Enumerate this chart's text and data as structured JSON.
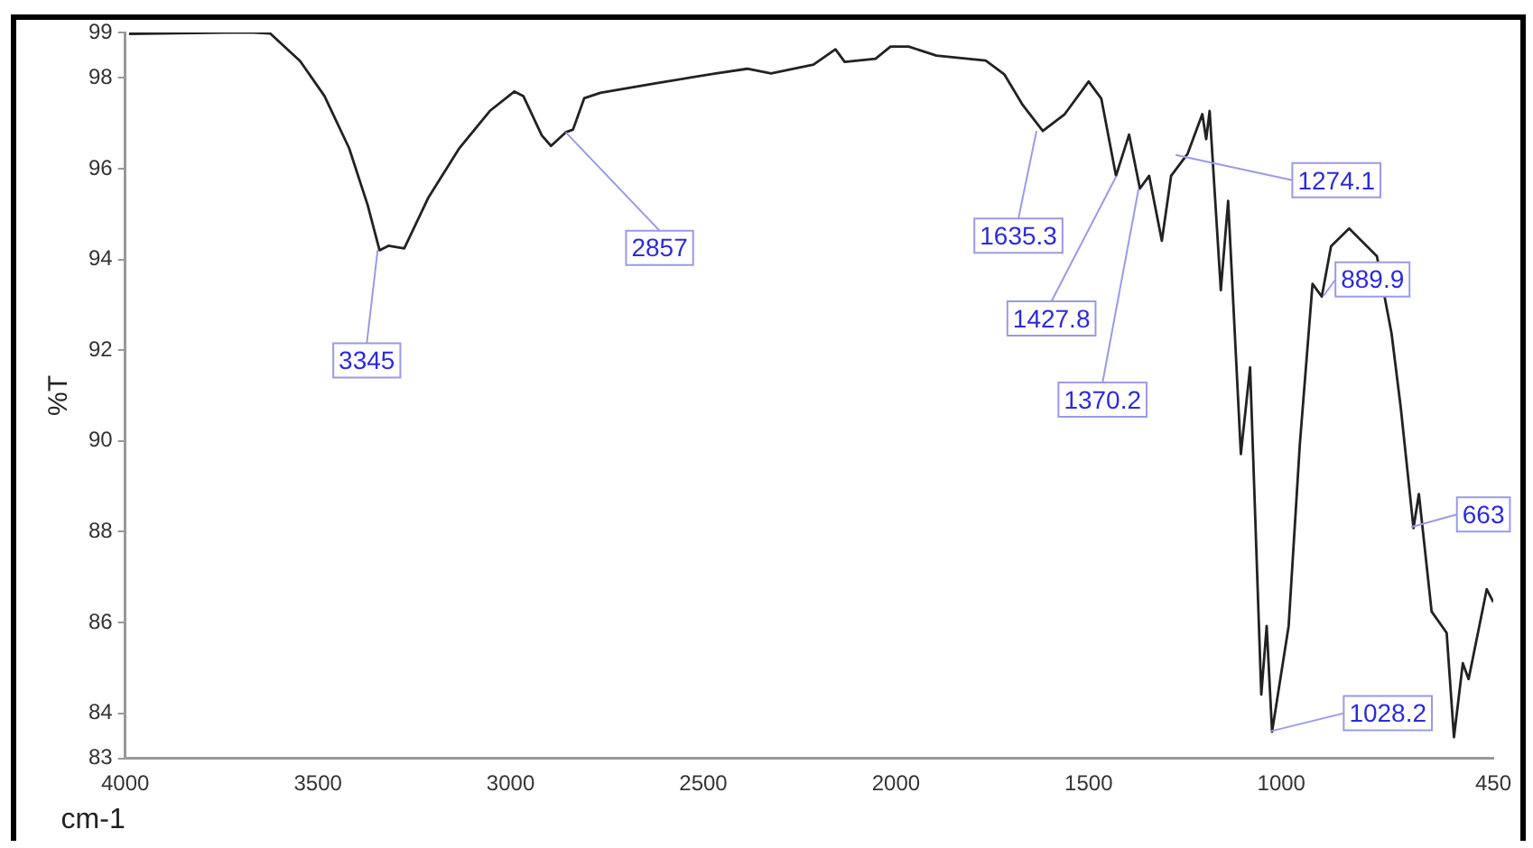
{
  "chart_data": {
    "type": "line",
    "xlabel": "cm-1",
    "ylabel": "%T",
    "xlim": [
      4000,
      450
    ],
    "xticks": [
      4000,
      3500,
      3000,
      2500,
      2000,
      1500,
      1000,
      450
    ],
    "ylim": [
      83,
      99
    ],
    "yticks": [
      83,
      84,
      86,
      88,
      90,
      92,
      94,
      96,
      98,
      99
    ],
    "grid": false,
    "legend": false,
    "marker": "none",
    "line_style": "solid",
    "series": [
      {
        "color": "#222222",
        "x": [
          3990,
          3738,
          3667,
          3624,
          3546,
          3483,
          3419,
          3371,
          3340,
          3317,
          3276,
          3214,
          3133,
          3054,
          2990,
          2967,
          2919,
          2895,
          2857,
          2838,
          2809,
          2767,
          2624,
          2467,
          2386,
          2324,
          2214,
          2157,
          2133,
          2053,
          2014,
          1967,
          1895,
          1767,
          1719,
          1671,
          1619,
          1562,
          1500,
          1467,
          1429,
          1395,
          1367,
          1343,
          1310,
          1286,
          1243,
          1205,
          1195,
          1186,
          1157,
          1138,
          1105,
          1081,
          1052,
          1038,
          1024,
          981,
          952,
          919,
          895,
          871,
          824,
          752,
          714,
          690,
          657,
          643,
          610,
          571,
          552,
          529,
          514,
          467,
          450
        ],
        "values": [
          98.97,
          99.0,
          99.0,
          98.98,
          98.37,
          97.6,
          96.45,
          95.2,
          94.2,
          94.3,
          94.24,
          95.35,
          96.45,
          97.27,
          97.7,
          97.6,
          96.73,
          96.5,
          96.8,
          96.86,
          97.55,
          97.67,
          97.88,
          98.1,
          98.2,
          98.1,
          98.29,
          98.63,
          98.35,
          98.42,
          98.69,
          98.69,
          98.49,
          98.38,
          98.08,
          97.4,
          96.83,
          97.2,
          97.92,
          97.54,
          95.84,
          96.75,
          95.56,
          95.84,
          94.41,
          95.84,
          96.33,
          97.2,
          96.65,
          97.27,
          93.32,
          95.29,
          89.71,
          91.62,
          84.41,
          85.92,
          83.59,
          85.92,
          89.92,
          93.46,
          93.18,
          94.29,
          94.68,
          94.07,
          92.37,
          90.73,
          88.08,
          88.83,
          86.24,
          85.77,
          83.47,
          85.1,
          84.75,
          86.73,
          86.45
        ]
      }
    ],
    "annotations": [
      {
        "text": "3345",
        "x": 3345,
        "y": 94.2
      },
      {
        "text": "2857",
        "x": 2857,
        "y": 96.8
      },
      {
        "text": "1635.3",
        "x": 1635.3,
        "y": 96.83
      },
      {
        "text": "1427.8",
        "x": 1427.8,
        "y": 95.84
      },
      {
        "text": "1370.2",
        "x": 1370.2,
        "y": 95.56
      },
      {
        "text": "1274.1",
        "x": 1274.1,
        "y": 96.3
      },
      {
        "text": "889.9",
        "x": 889.9,
        "y": 93.2
      },
      {
        "text": "663",
        "x": 663,
        "y": 88.1
      },
      {
        "text": "1028.2",
        "x": 1028.2,
        "y": 83.6
      }
    ]
  }
}
